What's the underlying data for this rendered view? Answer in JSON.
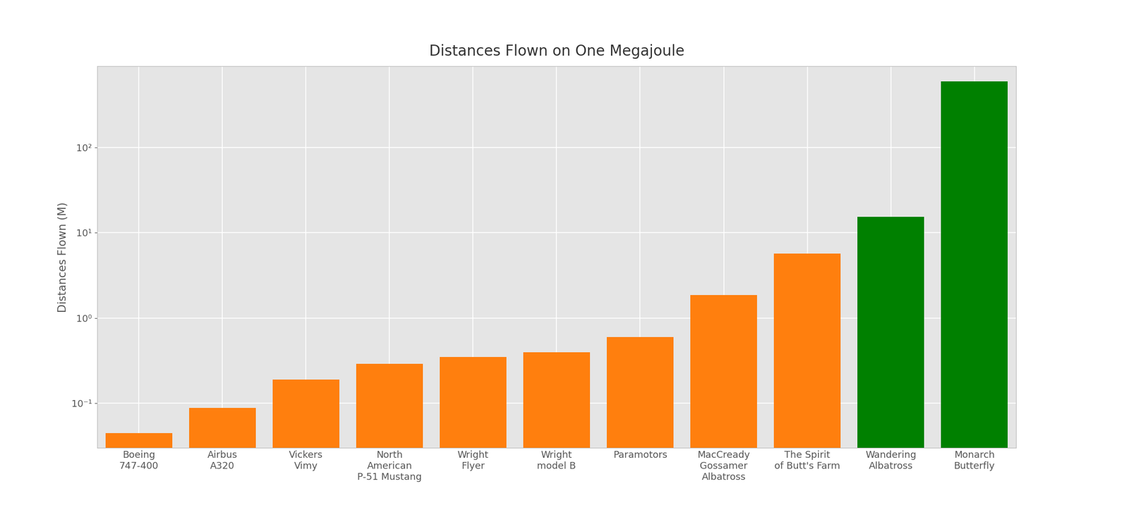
{
  "chart_data": {
    "type": "bar",
    "title": "Distances Flown on One Megajoule",
    "y_label": "Distances Flown (M)",
    "categories": [
      "Boeing\n747-400",
      "Airbus\nA320",
      "Vickers\nVimy",
      "North\nAmerican\nP-51 Mustang",
      "Wright\nFlyer",
      "Wright\nmodel B",
      "Paramotors",
      "MacCready\nGossamer\nAlbatross",
      "The Spirit\nof Butt's Farm",
      "Wandering\nAlbatross",
      "Monarch\nButterfly"
    ],
    "values": [
      0.045,
      0.089,
      0.19,
      0.29,
      0.35,
      0.4,
      0.6,
      1.86,
      5.7,
      15.4,
      590
    ],
    "colors": [
      "#ff7f0e",
      "#ff7f0e",
      "#ff7f0e",
      "#ff7f0e",
      "#ff7f0e",
      "#ff7f0e",
      "#ff7f0e",
      "#ff7f0e",
      "#ff7f0e",
      "#008000",
      "#008000"
    ],
    "log": "y",
    "ylim": [
      0.03,
      900
    ],
    "yticks": [
      {
        "value": 0.1,
        "label": "10⁻¹"
      },
      {
        "value": 1,
        "label": "10⁰"
      },
      {
        "value": 10,
        "label": "10¹"
      },
      {
        "value": 100,
        "label": "10²"
      }
    ],
    "grid": true
  }
}
